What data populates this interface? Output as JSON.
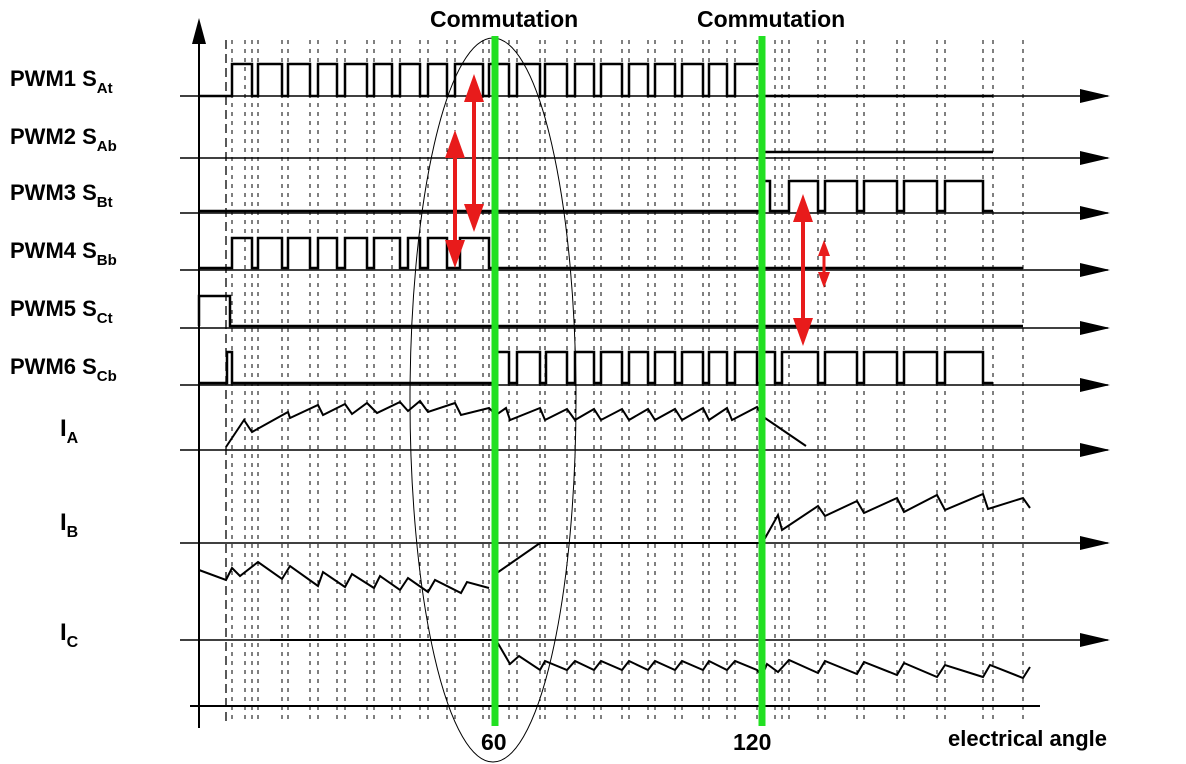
{
  "diagram": {
    "headers": [
      "Commutation",
      "Commutation"
    ],
    "x_tick_labels": [
      "60",
      "120"
    ],
    "x_axis_label": "electrical angle",
    "signals": [
      {
        "base": "PWM1 S",
        "sub": "At"
      },
      {
        "base": "PWM2 S",
        "sub": "Ab"
      },
      {
        "base": "PWM3 S",
        "sub": "Bt"
      },
      {
        "base": "PWM4 S",
        "sub": "Bb"
      },
      {
        "base": "PWM5 S",
        "sub": "Ct"
      },
      {
        "base": "PWM6 S",
        "sub": "Cb"
      }
    ],
    "currents": [
      {
        "base": "I",
        "sub": "A"
      },
      {
        "base": "I",
        "sub": "B"
      },
      {
        "base": "I",
        "sub": "C"
      }
    ],
    "colors": {
      "commutation_line": "#22e022",
      "arrow": "#e81b1b",
      "trace": "#000000",
      "ellipse": "#000000"
    }
  }
}
